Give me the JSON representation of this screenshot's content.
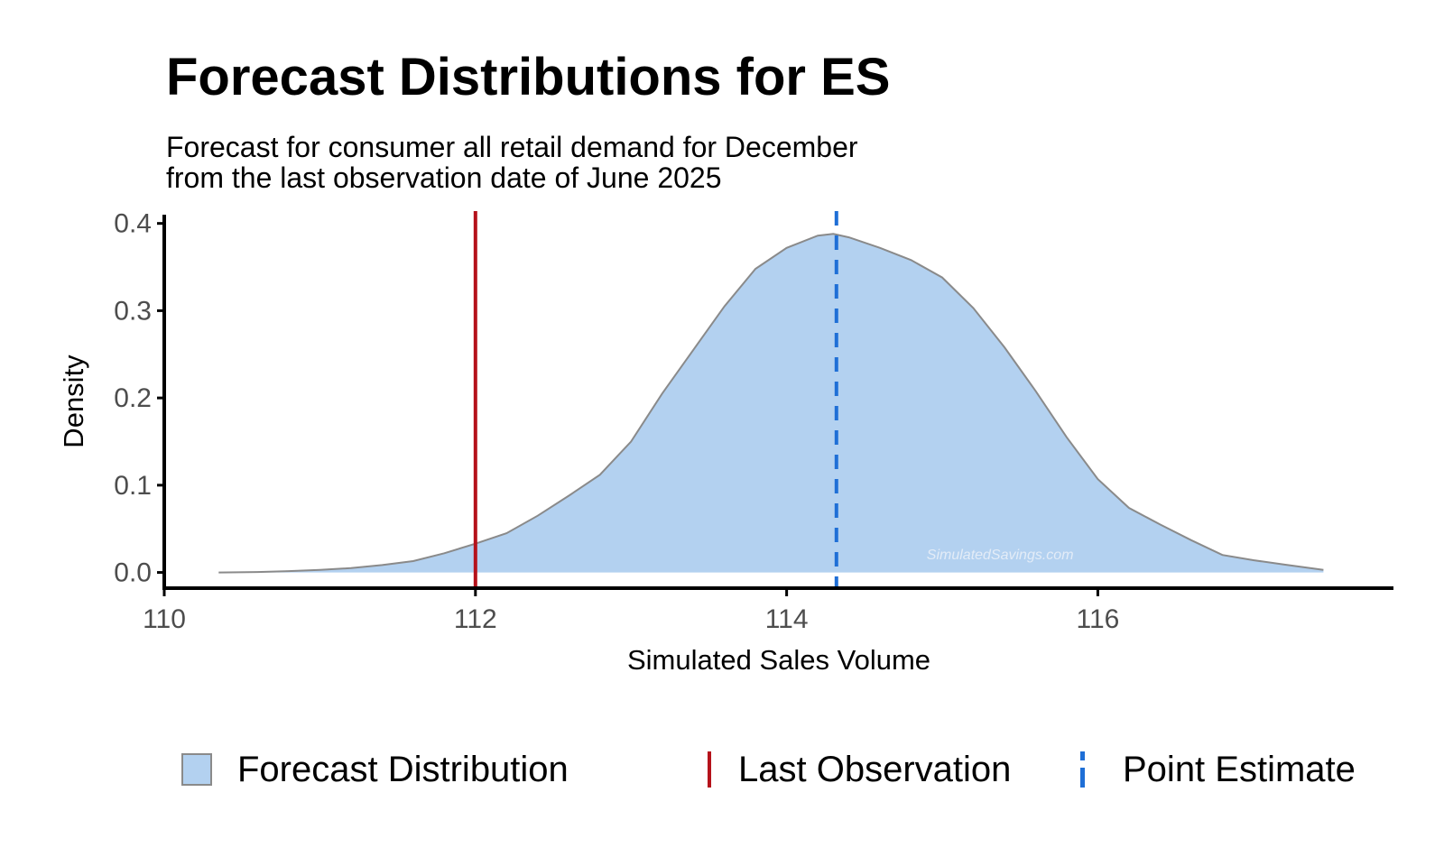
{
  "chart_data": {
    "type": "area",
    "title": "Forecast Distributions for ES",
    "subtitle": [
      "Forecast for consumer all retail demand for December",
      "from the last observation date of June 2025"
    ],
    "xlabel": "Simulated Sales Volume",
    "ylabel": "Density",
    "xlim": [
      110,
      117.9
    ],
    "ylim": [
      -0.018,
      0.41
    ],
    "x_ticks": [
      "110",
      "112",
      "114",
      "116"
    ],
    "y_ticks": [
      "0.0",
      "0.1",
      "0.2",
      "0.3",
      "0.4"
    ],
    "grid": false,
    "legend_position": "bottom",
    "watermark": "SimulatedSavings.com",
    "series": [
      {
        "name": "Forecast Distribution",
        "fill": "#b3d1f0",
        "stroke": "#8a8a8a",
        "x": [
          110.35,
          110.6,
          110.8,
          111.0,
          111.2,
          111.4,
          111.6,
          111.8,
          112.0,
          112.2,
          112.4,
          112.6,
          112.8,
          113.0,
          113.2,
          113.4,
          113.6,
          113.8,
          114.0,
          114.2,
          114.3,
          114.4,
          114.6,
          114.8,
          115.0,
          115.2,
          115.4,
          115.6,
          115.8,
          116.0,
          116.2,
          116.4,
          116.6,
          116.8,
          117.0,
          117.2,
          117.45
        ],
        "y": [
          0.0,
          0.0005,
          0.0015,
          0.003,
          0.005,
          0.0085,
          0.013,
          0.022,
          0.033,
          0.045,
          0.065,
          0.088,
          0.112,
          0.15,
          0.205,
          0.255,
          0.305,
          0.348,
          0.372,
          0.386,
          0.388,
          0.384,
          0.372,
          0.358,
          0.338,
          0.303,
          0.258,
          0.208,
          0.155,
          0.107,
          0.074,
          0.055,
          0.037,
          0.02,
          0.014,
          0.009,
          0.003
        ]
      }
    ],
    "reference_lines": [
      {
        "name": "Last Observation",
        "x": 112.0,
        "color": "#b5121b",
        "style": "solid"
      },
      {
        "name": "Point Estimate",
        "x": 114.32,
        "color": "#1f6fd6",
        "style": "dashed"
      }
    ]
  }
}
